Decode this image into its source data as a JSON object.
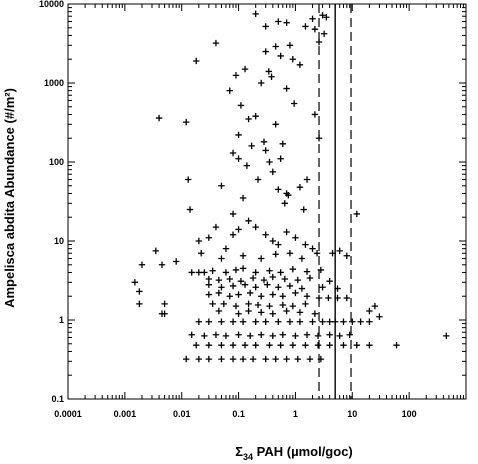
{
  "chart_data": {
    "type": "scatter",
    "title": "",
    "xlabel_prefix": "Σ",
    "xlabel_sub": "34",
    "xlabel_rest": " PAH (µmol/goc)",
    "ylabel": "Ampelisca abdita Abundance (#/m²)",
    "xscale": "log",
    "yscale": "log",
    "xlim": [
      0.0001,
      1000
    ],
    "ylim": [
      0.1,
      10000
    ],
    "x_ticks": [
      0.0001,
      0.001,
      0.01,
      0.1,
      1,
      10,
      100
    ],
    "x_tick_labels": [
      "0.0001",
      "0.001",
      "0.01",
      "0.1",
      "1",
      "10",
      "100"
    ],
    "y_ticks": [
      0.1,
      1,
      10,
      100,
      1000,
      10000
    ],
    "y_tick_labels": [
      "0.1",
      "1",
      "10",
      "100",
      "1000",
      "10000"
    ],
    "grid": false,
    "marker": "plus",
    "reference_lines": [
      {
        "x": 2.6,
        "style": "dashed"
      },
      {
        "x": 5.0,
        "style": "solid"
      },
      {
        "x": 9.5,
        "style": "dashed"
      }
    ],
    "points": [
      [
        0.004,
        360
      ],
      [
        0.012,
        320
      ],
      [
        0.018,
        1900
      ],
      [
        0.04,
        3200
      ],
      [
        0.07,
        800
      ],
      [
        0.09,
        1250
      ],
      [
        0.1,
        220
      ],
      [
        0.11,
        520
      ],
      [
        0.13,
        1500
      ],
      [
        0.2,
        7500
      ],
      [
        0.3,
        5200
      ],
      [
        0.5,
        6000
      ],
      [
        0.7,
        5800
      ],
      [
        0.9,
        2000
      ],
      [
        1.5,
        5200
      ],
      [
        2.0,
        6500
      ],
      [
        2.2,
        4800
      ],
      [
        2.6,
        3300
      ],
      [
        3.0,
        7200
      ],
      [
        3.2,
        4200
      ],
      [
        3.5,
        6800
      ],
      [
        0.3,
        2500
      ],
      [
        0.34,
        1400
      ],
      [
        0.38,
        1200
      ],
      [
        0.7,
        850
      ],
      [
        1.2,
        1700
      ],
      [
        0.25,
        1000
      ],
      [
        0.45,
        2900
      ],
      [
        0.55,
        2200
      ],
      [
        0.8,
        3000
      ],
      [
        0.15,
        350
      ],
      [
        0.2,
        380
      ],
      [
        0.45,
        300
      ],
      [
        0.95,
        550
      ],
      [
        2.2,
        400
      ],
      [
        2.6,
        200
      ],
      [
        0.28,
        180
      ],
      [
        0.08,
        130
      ],
      [
        0.1,
        110
      ],
      [
        0.14,
        90
      ],
      [
        0.17,
        160
      ],
      [
        0.3,
        140
      ],
      [
        0.35,
        100
      ],
      [
        0.55,
        110
      ],
      [
        0.6,
        170
      ],
      [
        0.22,
        60
      ],
      [
        0.4,
        75
      ],
      [
        0.7,
        40
      ],
      [
        1.6,
        60
      ],
      [
        0.12,
        35
      ],
      [
        0.65,
        30
      ],
      [
        1.4,
        25
      ],
      [
        0.013,
        60
      ],
      [
        0.014,
        25
      ],
      [
        0.05,
        50
      ],
      [
        0.08,
        22
      ],
      [
        0.5,
        45
      ],
      [
        0.75,
        38
      ],
      [
        1.2,
        48
      ],
      [
        12,
        22
      ],
      [
        0.002,
        5
      ],
      [
        0.0035,
        7.5
      ],
      [
        0.0045,
        5
      ],
      [
        0.008,
        5.5
      ],
      [
        0.02,
        10
      ],
      [
        0.03,
        11
      ],
      [
        0.04,
        15
      ],
      [
        0.06,
        8
      ],
      [
        0.08,
        12
      ],
      [
        0.1,
        14
      ],
      [
        0.15,
        18
      ],
      [
        0.2,
        15
      ],
      [
        0.3,
        12
      ],
      [
        0.4,
        10
      ],
      [
        0.5,
        9
      ],
      [
        0.7,
        13
      ],
      [
        1,
        11
      ],
      [
        1.5,
        9
      ],
      [
        2,
        8
      ],
      [
        0.022,
        7
      ],
      [
        0.05,
        6
      ],
      [
        0.12,
        6.5
      ],
      [
        0.25,
        6
      ],
      [
        0.45,
        6.8
      ],
      [
        0.8,
        7
      ],
      [
        1.3,
        6
      ],
      [
        2.4,
        7
      ],
      [
        4.5,
        7
      ],
      [
        6,
        7.5
      ],
      [
        8,
        6.5
      ],
      [
        0.015,
        4
      ],
      [
        0.02,
        4
      ],
      [
        0.025,
        4
      ],
      [
        0.035,
        4.2
      ],
      [
        0.06,
        4
      ],
      [
        0.09,
        4.3
      ],
      [
        0.12,
        4.5
      ],
      [
        0.2,
        4
      ],
      [
        0.35,
        4.2
      ],
      [
        0.55,
        4
      ],
      [
        0.9,
        4.4
      ],
      [
        1.6,
        4.1
      ],
      [
        2.8,
        4.3
      ],
      [
        0.03,
        3.3
      ],
      [
        0.045,
        3.2
      ],
      [
        0.07,
        3.3
      ],
      [
        0.11,
        3.1
      ],
      [
        0.18,
        3.4
      ],
      [
        0.28,
        3.2
      ],
      [
        0.4,
        3.5
      ],
      [
        0.65,
        3.3
      ],
      [
        1.1,
        3.2
      ],
      [
        1.8,
        3.4
      ],
      [
        4,
        3.1
      ],
      [
        0.0015,
        3
      ],
      [
        0.0018,
        2.3
      ],
      [
        0.03,
        2.8
      ],
      [
        0.05,
        2.6
      ],
      [
        0.08,
        2.7
      ],
      [
        0.13,
        2.8
      ],
      [
        0.2,
        2.6
      ],
      [
        0.32,
        2.8
      ],
      [
        0.5,
        2.6
      ],
      [
        0.8,
        2.7
      ],
      [
        1.3,
        2.5
      ],
      [
        3,
        2.6
      ],
      [
        5.5,
        2.5
      ],
      [
        0.03,
        2.1
      ],
      [
        0.045,
        2.2
      ],
      [
        0.07,
        2
      ],
      [
        0.1,
        2.1
      ],
      [
        0.16,
        2.2
      ],
      [
        0.25,
        2
      ],
      [
        0.4,
        2.1
      ],
      [
        0.6,
        2
      ],
      [
        1,
        2.2
      ],
      [
        1.6,
        2
      ],
      [
        2.6,
        1.9
      ],
      [
        3.8,
        1.9
      ],
      [
        5.5,
        1.9
      ],
      [
        8,
        1.9
      ],
      [
        0.0018,
        1.6
      ],
      [
        0.005,
        1.6
      ],
      [
        0.035,
        1.6
      ],
      [
        0.055,
        1.6
      ],
      [
        0.09,
        1.5
      ],
      [
        0.15,
        1.6
      ],
      [
        0.22,
        1.55
      ],
      [
        0.35,
        1.5
      ],
      [
        0.6,
        1.55
      ],
      [
        0.9,
        1.5
      ],
      [
        1.5,
        1.6
      ],
      [
        0.005,
        1.2
      ],
      [
        0.045,
        1.3
      ],
      [
        0.1,
        1.2
      ],
      [
        0.15,
        1.3
      ],
      [
        0.25,
        1.25
      ],
      [
        0.4,
        1.2
      ],
      [
        0.7,
        1.3
      ],
      [
        1.2,
        1.25
      ],
      [
        2.2,
        1.2
      ],
      [
        0.0045,
        1.2
      ],
      [
        25,
        1.5
      ],
      [
        20,
        1.3
      ],
      [
        30,
        1.1
      ],
      [
        0.02,
        0.95
      ],
      [
        0.03,
        0.95
      ],
      [
        0.05,
        0.95
      ],
      [
        0.08,
        0.95
      ],
      [
        0.12,
        0.95
      ],
      [
        0.2,
        0.95
      ],
      [
        0.3,
        0.95
      ],
      [
        0.5,
        0.95
      ],
      [
        0.8,
        0.95
      ],
      [
        1.2,
        0.95
      ],
      [
        2,
        0.95
      ],
      [
        3,
        0.95
      ],
      [
        4,
        0.95
      ],
      [
        5,
        0.95
      ],
      [
        7,
        0.95
      ],
      [
        10,
        0.95
      ],
      [
        14,
        0.95
      ],
      [
        20,
        0.95
      ],
      [
        0.015,
        0.65
      ],
      [
        0.025,
        0.63
      ],
      [
        0.04,
        0.65
      ],
      [
        0.06,
        0.63
      ],
      [
        0.1,
        0.65
      ],
      [
        0.16,
        0.63
      ],
      [
        0.25,
        0.65
      ],
      [
        0.4,
        0.63
      ],
      [
        0.6,
        0.65
      ],
      [
        1,
        0.63
      ],
      [
        1.6,
        0.65
      ],
      [
        2.5,
        0.63
      ],
      [
        4,
        0.65
      ],
      [
        6,
        0.63
      ],
      [
        9,
        0.65
      ],
      [
        450,
        0.63
      ],
      [
        0.018,
        0.48
      ],
      [
        0.03,
        0.48
      ],
      [
        0.05,
        0.48
      ],
      [
        0.08,
        0.48
      ],
      [
        0.13,
        0.48
      ],
      [
        0.2,
        0.48
      ],
      [
        0.35,
        0.48
      ],
      [
        0.55,
        0.48
      ],
      [
        0.9,
        0.48
      ],
      [
        1.5,
        0.48
      ],
      [
        2.5,
        0.48
      ],
      [
        4,
        0.48
      ],
      [
        7,
        0.48
      ],
      [
        12,
        0.48
      ],
      [
        20,
        0.48
      ],
      [
        60,
        0.48
      ],
      [
        0.012,
        0.32
      ],
      [
        0.02,
        0.32
      ],
      [
        0.03,
        0.32
      ],
      [
        0.05,
        0.32
      ],
      [
        0.08,
        0.32
      ],
      [
        0.12,
        0.32
      ],
      [
        0.18,
        0.32
      ],
      [
        0.3,
        0.32
      ],
      [
        0.45,
        0.32
      ],
      [
        0.7,
        0.32
      ],
      [
        1.1,
        0.32
      ],
      [
        1.8,
        0.32
      ],
      [
        2.8,
        0.32
      ]
    ]
  }
}
